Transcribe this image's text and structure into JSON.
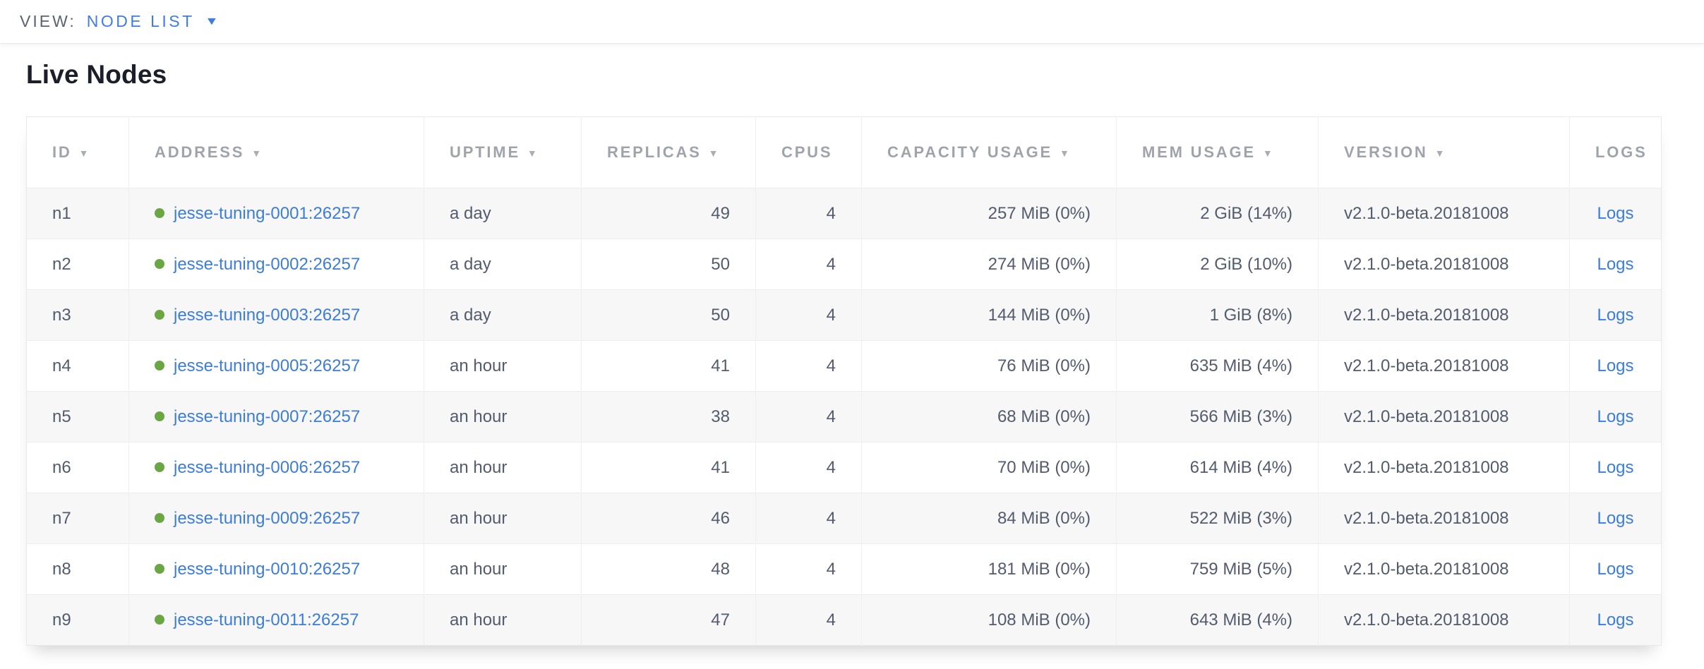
{
  "view_bar": {
    "label": "VIEW:",
    "selected": "NODE LIST"
  },
  "icons": {
    "caret_down": "▼",
    "sort_desc": "▼",
    "node_status": "green-circle"
  },
  "colors": {
    "link_blue": "#3b7dd8",
    "nav_blue": "#3f7de0",
    "status_green": "#6ba644",
    "header_gray": "#9fa4ab",
    "cell_text": "#535b6d",
    "stripe_gray": "#f7f7f8"
  },
  "page": {
    "title": "Live Nodes"
  },
  "table": {
    "sort_arrow": "▼",
    "columns": [
      {
        "key": "id",
        "label": "ID",
        "sortable": true
      },
      {
        "key": "address",
        "label": "ADDRESS",
        "sortable": true
      },
      {
        "key": "uptime",
        "label": "UPTIME",
        "sortable": true
      },
      {
        "key": "replicas",
        "label": "REPLICAS",
        "sortable": true
      },
      {
        "key": "cpus",
        "label": "CPUS",
        "sortable": false
      },
      {
        "key": "capacity",
        "label": "CAPACITY USAGE",
        "sortable": true
      },
      {
        "key": "mem",
        "label": "MEM USAGE",
        "sortable": true
      },
      {
        "key": "version",
        "label": "VERSION",
        "sortable": true
      },
      {
        "key": "logs",
        "label": "LOGS",
        "sortable": false
      }
    ],
    "rows": [
      {
        "id": "n1",
        "address": "jesse-tuning-0001:26257",
        "uptime": "a day",
        "replicas": "49",
        "cpus": "4",
        "capacity": "257 MiB (0%)",
        "mem": "2 GiB (14%)",
        "version": "v2.1.0-beta.20181008",
        "logs": "Logs"
      },
      {
        "id": "n2",
        "address": "jesse-tuning-0002:26257",
        "uptime": "a day",
        "replicas": "50",
        "cpus": "4",
        "capacity": "274 MiB (0%)",
        "mem": "2 GiB (10%)",
        "version": "v2.1.0-beta.20181008",
        "logs": "Logs"
      },
      {
        "id": "n3",
        "address": "jesse-tuning-0003:26257",
        "uptime": "a day",
        "replicas": "50",
        "cpus": "4",
        "capacity": "144 MiB (0%)",
        "mem": "1 GiB (8%)",
        "version": "v2.1.0-beta.20181008",
        "logs": "Logs"
      },
      {
        "id": "n4",
        "address": "jesse-tuning-0005:26257",
        "uptime": "an hour",
        "replicas": "41",
        "cpus": "4",
        "capacity": "76 MiB (0%)",
        "mem": "635 MiB (4%)",
        "version": "v2.1.0-beta.20181008",
        "logs": "Logs"
      },
      {
        "id": "n5",
        "address": "jesse-tuning-0007:26257",
        "uptime": "an hour",
        "replicas": "38",
        "cpus": "4",
        "capacity": "68 MiB (0%)",
        "mem": "566 MiB (3%)",
        "version": "v2.1.0-beta.20181008",
        "logs": "Logs"
      },
      {
        "id": "n6",
        "address": "jesse-tuning-0006:26257",
        "uptime": "an hour",
        "replicas": "41",
        "cpus": "4",
        "capacity": "70 MiB (0%)",
        "mem": "614 MiB (4%)",
        "version": "v2.1.0-beta.20181008",
        "logs": "Logs"
      },
      {
        "id": "n7",
        "address": "jesse-tuning-0009:26257",
        "uptime": "an hour",
        "replicas": "46",
        "cpus": "4",
        "capacity": "84 MiB (0%)",
        "mem": "522 MiB (3%)",
        "version": "v2.1.0-beta.20181008",
        "logs": "Logs"
      },
      {
        "id": "n8",
        "address": "jesse-tuning-0010:26257",
        "uptime": "an hour",
        "replicas": "48",
        "cpus": "4",
        "capacity": "181 MiB (0%)",
        "mem": "759 MiB (5%)",
        "version": "v2.1.0-beta.20181008",
        "logs": "Logs"
      },
      {
        "id": "n9",
        "address": "jesse-tuning-0011:26257",
        "uptime": "an hour",
        "replicas": "47",
        "cpus": "4",
        "capacity": "108 MiB (0%)",
        "mem": "643 MiB (4%)",
        "version": "v2.1.0-beta.20181008",
        "logs": "Logs"
      }
    ]
  }
}
